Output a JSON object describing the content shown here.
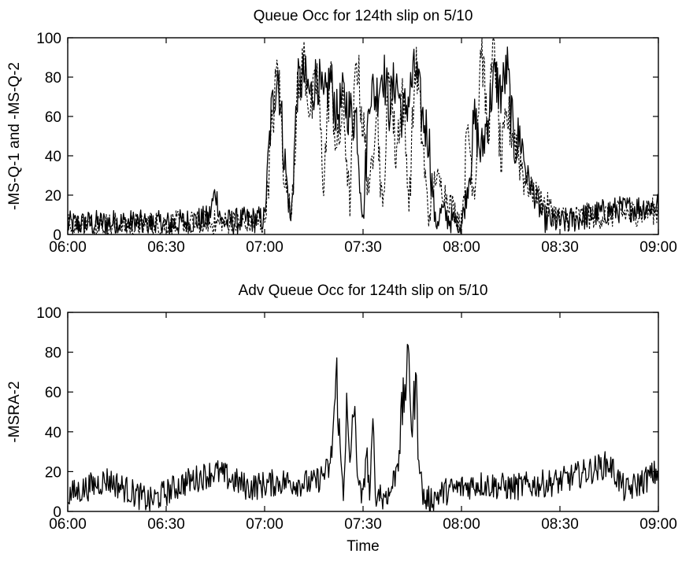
{
  "chart_data": [
    {
      "type": "line",
      "title": "Queue Occ for 124th slip on 5/10",
      "xlabel": "",
      "ylabel": "-MS-Q-1 and -MS-Q-2",
      "xlim": [
        "06:00",
        "09:00"
      ],
      "ylim": [
        0,
        100
      ],
      "x_ticks": [
        "06:00",
        "06:30",
        "07:00",
        "07:30",
        "08:00",
        "08:30",
        "09:00"
      ],
      "y_ticks": [
        0,
        20,
        40,
        60,
        80,
        100
      ],
      "grid": false,
      "series": [
        {
          "style": "solid",
          "color": "#000000",
          "x": [
            "06:00",
            "06:15",
            "06:30",
            "06:43",
            "06:45",
            "06:47",
            "07:00",
            "07:02",
            "07:04",
            "07:06",
            "07:08",
            "07:10",
            "07:12",
            "07:14",
            "07:16",
            "07:18",
            "07:20",
            "07:22",
            "07:24",
            "07:26",
            "07:28",
            "07:30",
            "07:32",
            "07:34",
            "07:36",
            "07:38",
            "07:40",
            "07:42",
            "07:44",
            "07:46",
            "07:48",
            "07:50",
            "07:52",
            "07:54",
            "07:56",
            "08:00",
            "08:02",
            "08:04",
            "08:06",
            "08:08",
            "08:10",
            "08:12",
            "08:14",
            "08:16",
            "08:18",
            "08:20",
            "08:25",
            "08:30",
            "08:45",
            "09:00"
          ],
          "y": [
            5,
            6,
            5,
            8,
            22,
            6,
            8,
            60,
            84,
            40,
            5,
            75,
            80,
            70,
            82,
            65,
            80,
            60,
            70,
            62,
            60,
            5,
            75,
            70,
            85,
            65,
            80,
            60,
            70,
            85,
            60,
            50,
            5,
            12,
            8,
            5,
            25,
            58,
            40,
            60,
            80,
            72,
            84,
            45,
            50,
            30,
            8,
            6,
            12,
            15
          ]
        },
        {
          "style": "dashed",
          "color": "#000000",
          "x": [
            "06:00",
            "06:30",
            "07:00",
            "07:04",
            "07:06",
            "07:08",
            "07:10",
            "07:12",
            "07:14",
            "07:16",
            "07:18",
            "07:20",
            "07:22",
            "07:24",
            "07:26",
            "07:28",
            "07:30",
            "07:32",
            "07:34",
            "07:36",
            "07:38",
            "07:40",
            "07:42",
            "07:44",
            "07:46",
            "07:48",
            "07:50",
            "07:52",
            "08:00",
            "08:02",
            "08:04",
            "08:06",
            "08:08",
            "08:10",
            "08:12",
            "08:14",
            "08:16",
            "08:20",
            "08:30",
            "09:00"
          ],
          "y": [
            4,
            5,
            6,
            88,
            30,
            10,
            70,
            90,
            60,
            80,
            25,
            85,
            40,
            65,
            15,
            92,
            55,
            20,
            70,
            10,
            85,
            40,
            75,
            15,
            88,
            50,
            8,
            30,
            6,
            55,
            20,
            100,
            50,
            100,
            35,
            60,
            50,
            25,
            8,
            12
          ]
        }
      ]
    },
    {
      "type": "line",
      "title": "Adv Queue Occ for 124th slip on 5/10",
      "xlabel": "Time",
      "ylabel": "-MSRA-2",
      "xlim": [
        "06:00",
        "09:00"
      ],
      "ylim": [
        0,
        100
      ],
      "x_ticks": [
        "06:00",
        "06:30",
        "07:00",
        "07:30",
        "08:00",
        "08:30",
        "09:00"
      ],
      "y_ticks": [
        0,
        20,
        40,
        60,
        80,
        100
      ],
      "grid": false,
      "series": [
        {
          "style": "solid",
          "color": "#000000",
          "x": [
            "06:00",
            "06:12",
            "06:25",
            "06:35",
            "06:45",
            "06:55",
            "07:05",
            "07:15",
            "07:20",
            "07:22",
            "07:23",
            "07:24",
            "07:25",
            "07:26",
            "07:27",
            "07:28",
            "07:29",
            "07:30",
            "07:31",
            "07:32",
            "07:33",
            "07:34",
            "07:35",
            "07:36",
            "07:37",
            "07:38",
            "07:40",
            "07:43",
            "07:44",
            "07:45",
            "07:46",
            "07:47",
            "07:48",
            "07:49",
            "07:55",
            "08:05",
            "08:15",
            "08:30",
            "08:45",
            "08:50",
            "09:00"
          ],
          "y": [
            8,
            16,
            5,
            14,
            20,
            12,
            15,
            14,
            22,
            68,
            30,
            10,
            50,
            20,
            55,
            28,
            10,
            5,
            33,
            8,
            39,
            6,
            12,
            5,
            10,
            8,
            20,
            65,
            75,
            40,
            66,
            30,
            10,
            5,
            10,
            14,
            12,
            15,
            24,
            10,
            20
          ]
        }
      ]
    }
  ]
}
